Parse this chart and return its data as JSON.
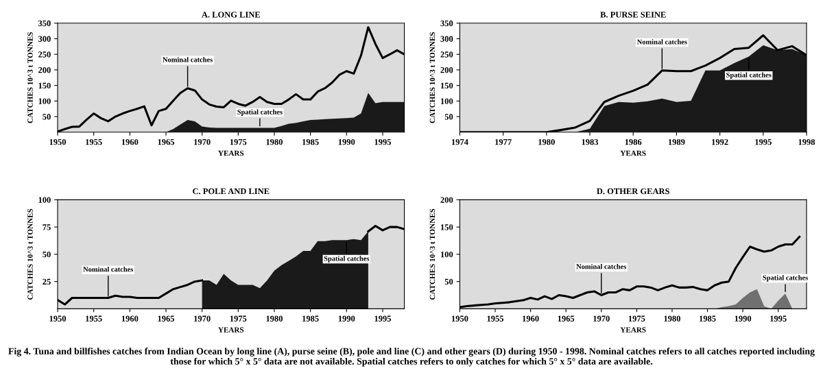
{
  "chart_data": [
    {
      "type": "line",
      "title": "A. LONG LINE",
      "xlabel": "YEARS",
      "ylabel": "CATCHES 10^3 t TONNES",
      "xlim": [
        1950,
        1998
      ],
      "xticks": [
        1950,
        1955,
        1960,
        1965,
        1970,
        1975,
        1980,
        1985,
        1990,
        1995
      ],
      "ylim": [
        0,
        350
      ],
      "yticks": [
        50,
        100,
        150,
        200,
        250,
        300,
        350
      ],
      "grid": false,
      "x": [
        1950,
        1951,
        1952,
        1953,
        1954,
        1955,
        1956,
        1957,
        1958,
        1959,
        1960,
        1961,
        1962,
        1963,
        1964,
        1965,
        1966,
        1967,
        1968,
        1969,
        1970,
        1971,
        1972,
        1973,
        1974,
        1975,
        1976,
        1977,
        1978,
        1979,
        1980,
        1981,
        1982,
        1983,
        1984,
        1985,
        1986,
        1987,
        1988,
        1989,
        1990,
        1991,
        1992,
        1993,
        1994,
        1995,
        1996,
        1997,
        1998
      ],
      "series": [
        {
          "type": "area",
          "color": "#1a1a1a",
          "x": [
            1965,
            1966,
            1967,
            1968,
            1969,
            1970,
            1971,
            1972,
            1973,
            1974,
            1975,
            1976,
            1977,
            1978,
            1979,
            1980,
            1981,
            1982,
            1983,
            1984,
            1985,
            1986,
            1987,
            1988,
            1989,
            1990,
            1991,
            1992,
            1993,
            1994,
            1995,
            1996,
            1997,
            1998
          ],
          "values": [
            0,
            10,
            25,
            39,
            35,
            18,
            15,
            14,
            14,
            14,
            14,
            14,
            14,
            14,
            14,
            14,
            20,
            27,
            30,
            35,
            39,
            40,
            42,
            43,
            44,
            45,
            47,
            60,
            126,
            93,
            97,
            97,
            97,
            97
          ]
        },
        {
          "color": "#000000",
          "values": [
            2,
            10,
            17,
            18,
            40,
            60,
            45,
            35,
            50,
            60,
            68,
            75,
            83,
            22,
            68,
            75,
            101,
            126,
            141,
            134,
            105,
            89,
            82,
            80,
            101,
            91,
            85,
            97,
            113,
            97,
            91,
            91,
            105,
            122,
            105,
            105,
            130,
            141,
            159,
            184,
            196,
            188,
            246,
            337,
            283,
            238,
            250,
            263,
            250
          ]
        }
      ],
      "annotations": [
        {
          "text": "Nominal catches",
          "x": 1968,
          "y": 141
        },
        {
          "text": "Spatial catches",
          "x": 1978,
          "y": 14
        }
      ]
    },
    {
      "type": "line",
      "title": "B. PURSE SEINE",
      "xlabel": "YEARS",
      "ylabel": "CATCHES 10^3 t TONNES",
      "xlim": [
        1974,
        1998
      ],
      "xticks": [
        1974,
        1977,
        1980,
        1983,
        1986,
        1989,
        1992,
        1995,
        1998
      ],
      "ylim": [
        0,
        350
      ],
      "yticks": [
        50,
        100,
        150,
        200,
        250,
        300,
        350
      ],
      "grid": false,
      "x": [
        1974,
        1975,
        1976,
        1977,
        1978,
        1979,
        1980,
        1981,
        1982,
        1983,
        1984,
        1985,
        1986,
        1987,
        1988,
        1989,
        1990,
        1991,
        1992,
        1993,
        1994,
        1995,
        1996,
        1997,
        1998
      ],
      "series": [
        {
          "type": "area",
          "color": "#1a1a1a",
          "x": [
            1982,
            1983,
            1984,
            1985,
            1986,
            1987,
            1988,
            1989,
            1990,
            1991,
            1992,
            1993,
            1994,
            1995,
            1996,
            1997,
            1998
          ],
          "values": [
            0,
            11,
            84,
            97,
            95,
            99,
            108,
            97,
            101,
            198,
            198,
            222,
            243,
            279,
            263,
            267,
            247
          ]
        },
        {
          "color": "#000000",
          "values": [
            0,
            0,
            0,
            0,
            0,
            0,
            0,
            7,
            15,
            36,
            97,
            117,
            133,
            153,
            198,
            196,
            196,
            214,
            238,
            267,
            271,
            311,
            263,
            276,
            247
          ]
        }
      ],
      "annotations": [
        {
          "text": "Nominal catches",
          "x": 1988,
          "y": 198
        },
        {
          "text": "Spatial catches",
          "x": 1994,
          "y": 243
        }
      ]
    },
    {
      "type": "line",
      "title": "C. POLE AND LINE",
      "xlabel": "YEARS",
      "ylabel": "CATCHES 10^3 t TONNES",
      "xlim": [
        1950,
        1998
      ],
      "xticks": [
        1950,
        1955,
        1960,
        1965,
        1970,
        1975,
        1980,
        1985,
        1990,
        1995
      ],
      "ylim": [
        0,
        100
      ],
      "yticks": [
        25,
        50,
        75,
        100
      ],
      "grid": false,
      "x": [
        1950,
        1951,
        1952,
        1953,
        1954,
        1955,
        1956,
        1957,
        1958,
        1959,
        1960,
        1961,
        1962,
        1963,
        1964,
        1965,
        1966,
        1967,
        1968,
        1969,
        1970,
        1971,
        1972,
        1973,
        1974,
        1975,
        1976,
        1977,
        1978,
        1979,
        1980,
        1981,
        1982,
        1983,
        1984,
        1985,
        1986,
        1987,
        1988,
        1989,
        1990,
        1991,
        1992,
        1993,
        1994,
        1995,
        1996,
        1997,
        1998
      ],
      "series": [
        {
          "type": "area",
          "color": "#1a1a1a",
          "x": [
            1970,
            1971,
            1972,
            1973,
            1974,
            1975,
            1976,
            1977,
            1978,
            1979,
            1980,
            1981,
            1982,
            1983,
            1984,
            1985,
            1986,
            1987,
            1988,
            1989,
            1990,
            1991,
            1992,
            1993
          ],
          "values": [
            26,
            26,
            22,
            32,
            26,
            22,
            22,
            22,
            19,
            26,
            35,
            40,
            44,
            48,
            53,
            53,
            62,
            62,
            63,
            63,
            63,
            64,
            63,
            71
          ]
        },
        {
          "color": "#000000",
          "values": [
            8,
            4,
            10,
            10,
            10,
            10,
            10,
            10,
            12,
            11,
            11,
            10,
            10,
            10,
            10,
            14,
            18,
            20,
            22,
            25,
            26,
            null,
            null,
            null,
            null,
            null,
            null,
            null,
            null,
            null,
            null,
            null,
            null,
            null,
            null,
            null,
            null,
            null,
            null,
            null,
            null,
            null,
            null,
            71,
            76,
            72,
            75,
            75,
            73
          ]
        }
      ],
      "annotations": [
        {
          "text": "Nominal catches",
          "x": 1957,
          "y": 10
        },
        {
          "text": "Spatial catches",
          "x": 1990,
          "y": 63
        }
      ]
    },
    {
      "type": "line",
      "title": "D. OTHER GEARS",
      "xlabel": "YEARS",
      "ylabel": "CATCHES 10^3 t TONNES",
      "xlim": [
        1950,
        1999
      ],
      "xticks": [
        1950,
        1955,
        1960,
        1965,
        1970,
        1975,
        1980,
        1985,
        1990,
        1995
      ],
      "ylim": [
        0,
        200
      ],
      "yticks": [
        50,
        100,
        150,
        200
      ],
      "grid": false,
      "x": [
        1950,
        1951,
        1952,
        1953,
        1954,
        1955,
        1956,
        1957,
        1958,
        1959,
        1960,
        1961,
        1962,
        1963,
        1964,
        1965,
        1966,
        1967,
        1968,
        1969,
        1970,
        1971,
        1972,
        1973,
        1974,
        1975,
        1976,
        1977,
        1978,
        1979,
        1980,
        1981,
        1982,
        1983,
        1984,
        1985,
        1986,
        1987,
        1988,
        1989,
        1990,
        1991,
        1992,
        1993,
        1994,
        1995,
        1996,
        1997,
        1998
      ],
      "series": [
        {
          "type": "area",
          "color": "#707070",
          "x": [
            1986,
            1987,
            1988,
            1989,
            1990,
            1991,
            1992,
            1993,
            1994,
            1995,
            1996,
            1997
          ],
          "values": [
            0,
            3,
            5,
            8,
            20,
            30,
            36,
            5,
            0,
            15,
            28,
            0
          ]
        },
        {
          "color": "#000000",
          "values": [
            3,
            5,
            6,
            7,
            8,
            10,
            11,
            12,
            14,
            16,
            20,
            17,
            23,
            18,
            25,
            23,
            20,
            25,
            30,
            32,
            25,
            30,
            30,
            36,
            34,
            41,
            41,
            39,
            34,
            39,
            43,
            39,
            39,
            40,
            36,
            34,
            43,
            48,
            50,
            75,
            95,
            114,
            109,
            105,
            107,
            114,
            118,
            118,
            132
          ]
        }
      ],
      "annotations": [
        {
          "text": "Nominal catches",
          "x": 1970,
          "y": 25
        },
        {
          "text": "Spatial catches",
          "x": 1996,
          "y": 28
        },
        "Fig 4. Tuna and billfishes catches from Indian Ocean by long line (A), purse seine (B), pole and line (C) and other gears (D) during 1950 - 1998. Nominal catches refers to all catches reported including those for which 5° x 5° data are not available. Spatial catches refers to only catches for which 5° x 5° data are available."
      ]
    }
  ]
}
